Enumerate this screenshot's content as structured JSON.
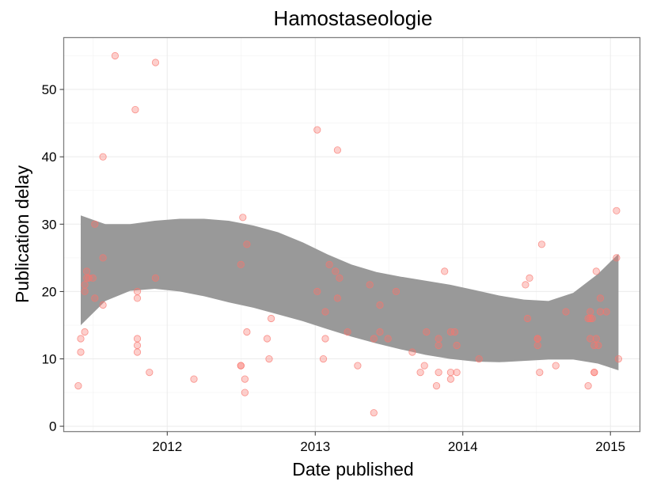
{
  "chart_data": {
    "type": "scatter",
    "title": "Hamostaseologie",
    "xlabel": "Date published",
    "ylabel": "Publication delay",
    "x_axis_type": "time",
    "xlim": [
      "2011-04-20",
      "2015-03-15"
    ],
    "ylim": [
      -0.8,
      57.7
    ],
    "x_ticks": [
      {
        "date": "2012-01-01",
        "label": "2012"
      },
      {
        "date": "2013-01-01",
        "label": "2013"
      },
      {
        "date": "2014-01-01",
        "label": "2014"
      },
      {
        "date": "2015-01-01",
        "label": "2015"
      }
    ],
    "x_minor_ticks": [
      "2011-07-02",
      "2012-07-02",
      "2013-07-02",
      "2014-07-02"
    ],
    "y_ticks": [
      0,
      10,
      20,
      30,
      40,
      50
    ],
    "y_minor_ticks": [
      5,
      15,
      25,
      35,
      45,
      55
    ],
    "grid": true,
    "point_color": "#F8766D",
    "point_alpha": 0.35,
    "ribbon_color": "#999999",
    "series": [
      {
        "points": [
          {
            "x": "2011-05-26",
            "y": 6
          },
          {
            "x": "2011-06-01",
            "y": 13
          },
          {
            "x": "2011-06-01",
            "y": 11
          },
          {
            "x": "2011-06-11",
            "y": 21
          },
          {
            "x": "2011-06-11",
            "y": 20
          },
          {
            "x": "2011-06-11",
            "y": 14
          },
          {
            "x": "2011-06-16",
            "y": 22
          },
          {
            "x": "2011-06-16",
            "y": 23
          },
          {
            "x": "2011-06-21",
            "y": 22
          },
          {
            "x": "2011-07-01",
            "y": 22
          },
          {
            "x": "2011-07-06",
            "y": 30
          },
          {
            "x": "2011-07-06",
            "y": 19
          },
          {
            "x": "2011-07-26",
            "y": 25
          },
          {
            "x": "2011-07-26",
            "y": 18
          },
          {
            "x": "2011-07-26",
            "y": 40
          },
          {
            "x": "2011-08-25",
            "y": 55
          },
          {
            "x": "2011-10-14",
            "y": 47
          },
          {
            "x": "2011-10-19",
            "y": 20
          },
          {
            "x": "2011-10-19",
            "y": 19
          },
          {
            "x": "2011-10-19",
            "y": 13
          },
          {
            "x": "2011-10-19",
            "y": 12
          },
          {
            "x": "2011-10-19",
            "y": 11
          },
          {
            "x": "2011-11-18",
            "y": 8
          },
          {
            "x": "2011-12-03",
            "y": 54
          },
          {
            "x": "2011-12-03",
            "y": 22
          },
          {
            "x": "2012-03-07",
            "y": 7
          },
          {
            "x": "2012-07-01",
            "y": 24
          },
          {
            "x": "2012-07-01",
            "y": 9
          },
          {
            "x": "2012-07-01",
            "y": 9
          },
          {
            "x": "2012-07-06",
            "y": 31
          },
          {
            "x": "2012-07-11",
            "y": 7
          },
          {
            "x": "2012-07-11",
            "y": 5
          },
          {
            "x": "2012-07-16",
            "y": 27
          },
          {
            "x": "2012-07-16",
            "y": 14
          },
          {
            "x": "2012-09-04",
            "y": 13
          },
          {
            "x": "2012-09-09",
            "y": 10
          },
          {
            "x": "2012-09-14",
            "y": 16
          },
          {
            "x": "2013-01-06",
            "y": 44
          },
          {
            "x": "2013-01-06",
            "y": 20
          },
          {
            "x": "2013-01-21",
            "y": 10
          },
          {
            "x": "2013-01-26",
            "y": 17
          },
          {
            "x": "2013-01-26",
            "y": 13
          },
          {
            "x": "2013-02-05",
            "y": 24
          },
          {
            "x": "2013-02-20",
            "y": 23
          },
          {
            "x": "2013-02-25",
            "y": 41
          },
          {
            "x": "2013-02-25",
            "y": 19
          },
          {
            "x": "2013-03-02",
            "y": 22
          },
          {
            "x": "2013-03-22",
            "y": 14
          },
          {
            "x": "2013-04-16",
            "y": 9
          },
          {
            "x": "2013-05-16",
            "y": 21
          },
          {
            "x": "2013-05-26",
            "y": 13
          },
          {
            "x": "2013-05-26",
            "y": 2
          },
          {
            "x": "2013-06-10",
            "y": 18
          },
          {
            "x": "2013-06-10",
            "y": 14
          },
          {
            "x": "2013-06-30",
            "y": 13
          },
          {
            "x": "2013-07-20",
            "y": 20
          },
          {
            "x": "2013-08-29",
            "y": 11
          },
          {
            "x": "2013-09-18",
            "y": 8
          },
          {
            "x": "2013-09-28",
            "y": 9
          },
          {
            "x": "2013-10-03",
            "y": 14
          },
          {
            "x": "2013-10-28",
            "y": 6
          },
          {
            "x": "2013-11-02",
            "y": 13
          },
          {
            "x": "2013-11-02",
            "y": 12
          },
          {
            "x": "2013-11-02",
            "y": 8
          },
          {
            "x": "2013-11-17",
            "y": 23
          },
          {
            "x": "2013-12-02",
            "y": 14
          },
          {
            "x": "2013-12-02",
            "y": 8
          },
          {
            "x": "2013-12-02",
            "y": 7
          },
          {
            "x": "2013-12-12",
            "y": 14
          },
          {
            "x": "2013-12-17",
            "y": 12
          },
          {
            "x": "2013-12-17",
            "y": 8
          },
          {
            "x": "2014-02-10",
            "y": 10
          },
          {
            "x": "2014-06-05",
            "y": 21
          },
          {
            "x": "2014-06-10",
            "y": 16
          },
          {
            "x": "2014-06-15",
            "y": 22
          },
          {
            "x": "2014-07-05",
            "y": 13
          },
          {
            "x": "2014-07-05",
            "y": 13
          },
          {
            "x": "2014-07-05",
            "y": 12
          },
          {
            "x": "2014-07-10",
            "y": 8
          },
          {
            "x": "2014-07-15",
            "y": 27
          },
          {
            "x": "2014-08-19",
            "y": 9
          },
          {
            "x": "2014-09-13",
            "y": 17
          },
          {
            "x": "2014-11-07",
            "y": 6
          },
          {
            "x": "2014-11-07",
            "y": 16
          },
          {
            "x": "2014-11-12",
            "y": 17
          },
          {
            "x": "2014-11-12",
            "y": 16
          },
          {
            "x": "2014-11-12",
            "y": 13
          },
          {
            "x": "2014-11-17",
            "y": 16
          },
          {
            "x": "2014-11-22",
            "y": 12
          },
          {
            "x": "2014-11-22",
            "y": 8
          },
          {
            "x": "2014-11-22",
            "y": 8
          },
          {
            "x": "2014-11-27",
            "y": 23
          },
          {
            "x": "2014-11-27",
            "y": 13
          },
          {
            "x": "2014-12-02",
            "y": 12
          },
          {
            "x": "2014-12-07",
            "y": 19
          },
          {
            "x": "2014-12-07",
            "y": 17
          },
          {
            "x": "2014-12-22",
            "y": 17
          },
          {
            "x": "2015-01-16",
            "y": 32
          },
          {
            "x": "2015-01-16",
            "y": 25
          },
          {
            "x": "2015-01-21",
            "y": 10
          }
        ]
      }
    ],
    "confidence_band": [
      {
        "x": "2011-06-01",
        "upper": 31.3,
        "lower": 15.0
      },
      {
        "x": "2011-08-01",
        "upper": 30.0,
        "lower": 18.6
      },
      {
        "x": "2011-10-01",
        "upper": 30.0,
        "lower": 20.1
      },
      {
        "x": "2011-12-01",
        "upper": 30.5,
        "lower": 20.4
      },
      {
        "x": "2012-02-01",
        "upper": 30.8,
        "lower": 20.0
      },
      {
        "x": "2012-04-01",
        "upper": 30.8,
        "lower": 19.3
      },
      {
        "x": "2012-06-01",
        "upper": 30.5,
        "lower": 18.4
      },
      {
        "x": "2012-08-01",
        "upper": 29.8,
        "lower": 17.6
      },
      {
        "x": "2012-10-01",
        "upper": 28.8,
        "lower": 16.6
      },
      {
        "x": "2012-12-01",
        "upper": 27.3,
        "lower": 15.6
      },
      {
        "x": "2013-02-01",
        "upper": 25.5,
        "lower": 14.4
      },
      {
        "x": "2013-04-01",
        "upper": 24.0,
        "lower": 13.3
      },
      {
        "x": "2013-06-01",
        "upper": 22.9,
        "lower": 12.3
      },
      {
        "x": "2013-08-01",
        "upper": 22.2,
        "lower": 11.4
      },
      {
        "x": "2013-10-01",
        "upper": 21.6,
        "lower": 10.6
      },
      {
        "x": "2013-12-01",
        "upper": 21.0,
        "lower": 10.0
      },
      {
        "x": "2014-02-01",
        "upper": 20.2,
        "lower": 9.6
      },
      {
        "x": "2014-04-01",
        "upper": 19.4,
        "lower": 9.5
      },
      {
        "x": "2014-06-01",
        "upper": 18.8,
        "lower": 9.7
      },
      {
        "x": "2014-08-01",
        "upper": 18.6,
        "lower": 9.9
      },
      {
        "x": "2014-10-01",
        "upper": 19.8,
        "lower": 9.9
      },
      {
        "x": "2014-12-01",
        "upper": 22.6,
        "lower": 9.3
      },
      {
        "x": "2015-01-21",
        "upper": 25.6,
        "lower": 8.3
      }
    ]
  }
}
